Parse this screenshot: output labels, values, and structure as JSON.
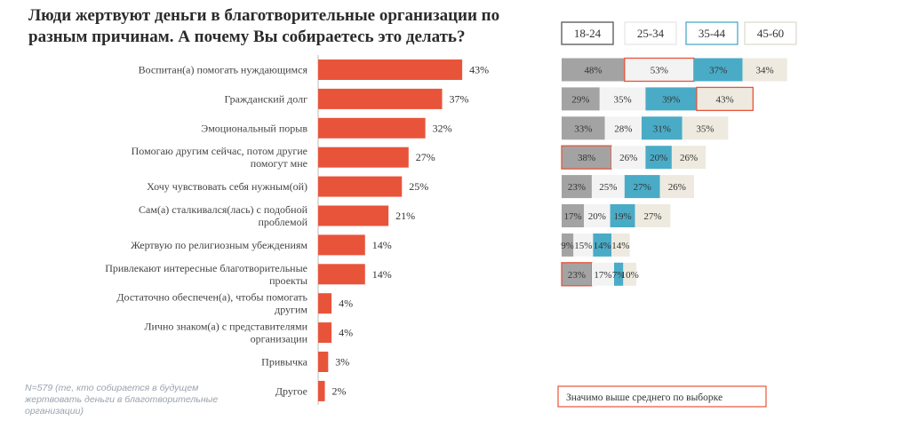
{
  "title": "Люди жертвуют деньги в благотворительные организации по разным причинам. А почему Вы собираетесь это делать?",
  "note": "N=579 (те, кто собирается в будущем жертвовать деньги в благотворительные организации)",
  "significance_label": "Значимо выше среднего по выборке",
  "colors": {
    "main_bar": "#e8543a",
    "c18_24": "#a3a3a3",
    "c25_34": "#f3f3f3",
    "c35_44": "#4aabc6",
    "c45_60": "#eeeae0",
    "highlight": "#e8543a"
  },
  "chart_data": [
    {
      "type": "bar",
      "orientation": "horizontal",
      "categories": [
        [
          "Воспитан(а) помогать нуждающимся"
        ],
        [
          "Гражданский долг"
        ],
        [
          "Эмоциональный порыв"
        ],
        [
          "Помогаю другим сейчас, потом другие",
          "помогут мне"
        ],
        [
          "Хочу чувствовать себя нужным(ой)"
        ],
        [
          "Сам(а) сталкивался(лась) с подобной",
          "проблемой"
        ],
        [
          "Жертвую по религиозным убеждениям"
        ],
        [
          "Привлекают интересные благотворительные",
          "проекты"
        ],
        [
          "Достаточно обеспечен(а), чтобы помогать",
          "другим"
        ],
        [
          "Лично знаком(а) с представителями",
          "организации"
        ],
        [
          "Привычка"
        ],
        [
          "Другое"
        ]
      ],
      "values": [
        43,
        37,
        32,
        27,
        25,
        21,
        14,
        14,
        4,
        4,
        3,
        2
      ],
      "value_labels": [
        "43%",
        "37%",
        "32%",
        "27%",
        "25%",
        "21%",
        "14%",
        "14%",
        "4%",
        "4%",
        "3%",
        "2%"
      ]
    },
    {
      "type": "bar",
      "orientation": "horizontal",
      "stacked": true,
      "legend": [
        "18-24",
        "25-34",
        "35-44",
        "45-60"
      ],
      "series": [
        {
          "name": "18-24",
          "values": [
            48,
            29,
            33,
            38,
            23,
            17,
            9,
            23
          ],
          "labels": [
            "48%",
            "29%",
            "33%",
            "38%",
            "23%",
            "17%",
            "9%",
            "23%"
          ],
          "highlighted": [
            false,
            false,
            false,
            true,
            false,
            false,
            false,
            true
          ]
        },
        {
          "name": "25-34",
          "values": [
            53,
            35,
            28,
            26,
            25,
            20,
            15,
            17
          ],
          "labels": [
            "53%",
            "35%",
            "28%",
            "26%",
            "25%",
            "20%",
            "15%",
            "17%"
          ],
          "highlighted": [
            true,
            false,
            false,
            false,
            false,
            false,
            false,
            false
          ]
        },
        {
          "name": "35-44",
          "values": [
            37,
            39,
            31,
            20,
            27,
            19,
            14,
            7
          ],
          "labels": [
            "37%",
            "39%",
            "31%",
            "20%",
            "27%",
            "19%",
            "14%",
            "7%"
          ],
          "highlighted": [
            false,
            false,
            false,
            false,
            false,
            false,
            false,
            false
          ]
        },
        {
          "name": "45-60",
          "values": [
            34,
            43,
            35,
            26,
            26,
            27,
            14,
            10
          ],
          "labels": [
            "34%",
            "43%",
            "35%",
            "26%",
            "26%",
            "27%",
            "14%",
            "10%"
          ],
          "highlighted": [
            false,
            true,
            false,
            false,
            false,
            false,
            false,
            false
          ]
        }
      ]
    }
  ]
}
